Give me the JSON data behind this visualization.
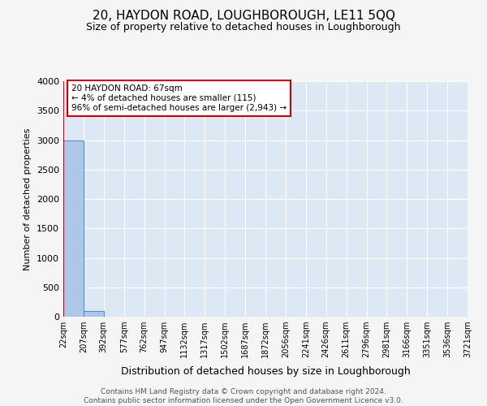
{
  "title": "20, HAYDON ROAD, LOUGHBOROUGH, LE11 5QQ",
  "subtitle": "Size of property relative to detached houses in Loughborough",
  "xlabel": "Distribution of detached houses by size in Loughborough",
  "ylabel": "Number of detached properties",
  "footer_line1": "Contains HM Land Registry data © Crown copyright and database right 2024.",
  "footer_line2": "Contains public sector information licensed under the Open Government Licence v3.0.",
  "tick_labels": [
    "22sqm",
    "207sqm",
    "392sqm",
    "577sqm",
    "762sqm",
    "947sqm",
    "1132sqm",
    "1317sqm",
    "1502sqm",
    "1687sqm",
    "1872sqm",
    "2056sqm",
    "2241sqm",
    "2426sqm",
    "2611sqm",
    "2796sqm",
    "2981sqm",
    "3166sqm",
    "3351sqm",
    "3536sqm",
    "3721sqm"
  ],
  "bar_heights": [
    3000,
    100,
    0,
    0,
    0,
    0,
    0,
    0,
    0,
    0,
    0,
    0,
    0,
    0,
    0,
    0,
    0,
    0,
    0,
    0
  ],
  "bar_color": "#aec6e8",
  "bar_edge_color": "#5a8fc3",
  "ylim": [
    0,
    4000
  ],
  "yticks": [
    0,
    500,
    1000,
    1500,
    2000,
    2500,
    3000,
    3500,
    4000
  ],
  "annotation_line1": "20 HAYDON ROAD: 67sqm",
  "annotation_line2": "← 4% of detached houses are smaller (115)",
  "annotation_line3": "96% of semi-detached houses are larger (2,943) →",
  "annotation_box_facecolor": "#ffffff",
  "annotation_box_edgecolor": "#cc0000",
  "bg_color": "#dde8f5",
  "grid_color": "#ffffff",
  "property_line_color": "#cc0000",
  "fig_bg_color": "#f5f5f5",
  "title_fontsize": 11,
  "subtitle_fontsize": 9,
  "ylabel_fontsize": 8,
  "xlabel_fontsize": 9,
  "tick_fontsize": 7,
  "ytick_fontsize": 8,
  "footer_fontsize": 6.5,
  "annotation_fontsize": 7.5
}
